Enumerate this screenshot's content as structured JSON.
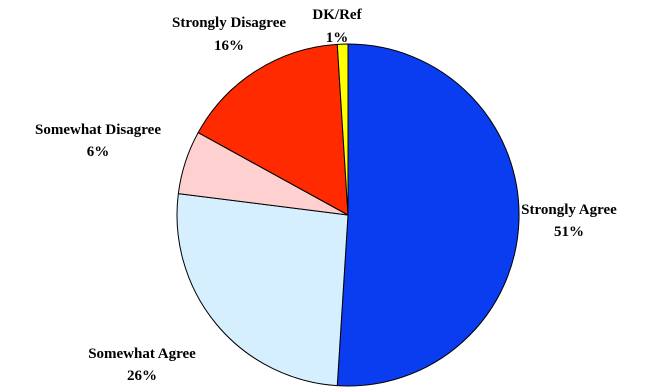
{
  "chart_data": {
    "type": "pie",
    "title": "",
    "start_angle_deg": 0,
    "direction": "clockwise",
    "slices": [
      {
        "label": "Strongly Agree",
        "value": 51,
        "value_label": "51%",
        "color": "#0a3cf0"
      },
      {
        "label": "Somewhat Agree",
        "value": 26,
        "value_label": "26%",
        "color": "#d6efff"
      },
      {
        "label": "Somewhat Disagree",
        "value": 6,
        "value_label": "6%",
        "color": "#ffd0d0"
      },
      {
        "label": "Strongly Disagree",
        "value": 16,
        "value_label": "16%",
        "color": "#ff2a00"
      },
      {
        "label": "DK/Ref",
        "value": 1,
        "value_label": "1%",
        "color": "#ffff00"
      }
    ],
    "legend": "none"
  }
}
